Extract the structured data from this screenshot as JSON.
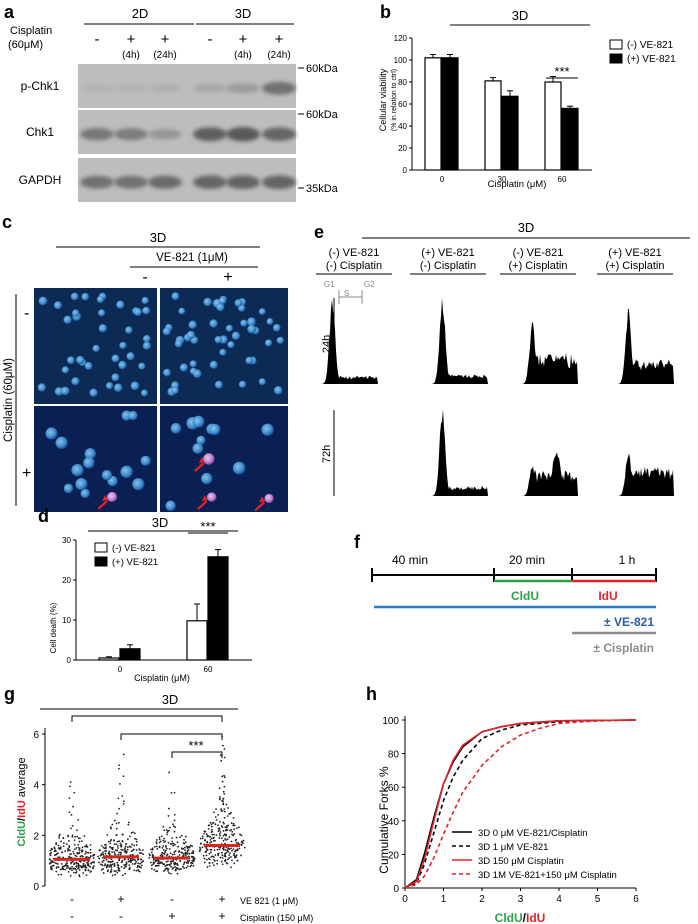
{
  "panels": {
    "a": {
      "letter": "a",
      "row_label_1": "Cisplatin",
      "row_label_2": "(60μM)",
      "group_2d": "2D",
      "group_3d": "3D",
      "lanes": [
        {
          "sign": "-",
          "time": ""
        },
        {
          "sign": "+",
          "time": "(4h)"
        },
        {
          "sign": "+",
          "time": "(24h)"
        },
        {
          "sign": "-",
          "time": ""
        },
        {
          "sign": "+",
          "time": "(4h)"
        },
        {
          "sign": "+",
          "time": "(24h)"
        }
      ],
      "blots": [
        {
          "label": "p-Chk1",
          "marker": "60kDa"
        },
        {
          "label": "Chk1",
          "marker": "60kDa"
        },
        {
          "label": "GAPDH",
          "marker": "35kDa"
        }
      ]
    },
    "b": {
      "letter": "b",
      "title": "3D",
      "ylabel_1": "Cellular viability",
      "ylabel_2": "(% in relation to ctrl)",
      "xlabel": "Cisplatin (μM)",
      "significance": "***",
      "legend": [
        "(-) VE-821",
        "(+) VE-821"
      ]
    },
    "c": {
      "letter": "c",
      "title": "3D",
      "treatment": "VE-821 (1μM)",
      "col_minus": "-",
      "col_plus": "+",
      "row_label": "Cisplatin (60μM)",
      "row_minus": "-",
      "row_plus": "+"
    },
    "d": {
      "letter": "d",
      "title": "3D",
      "ylabel": "Cell death (%)",
      "xlabel": "Cisplatin (μM)",
      "significance": "***",
      "legend": [
        "(-) VE-821",
        "(+) VE-821"
      ]
    },
    "e": {
      "letter": "e",
      "title": "3D",
      "columns": [
        {
          "line1": "(-) VE-821",
          "line2": "(-) Cisplatin"
        },
        {
          "line1": "(+) VE-821",
          "line2": "(-) Cisplatin"
        },
        {
          "line1": "(-) VE-821",
          "line2": "(+) Cisplatin"
        },
        {
          "line1": "(+) VE-821",
          "line2": "(+) Cisplatin"
        }
      ],
      "phase_g1": "G1",
      "phase_s": "S",
      "phase_g2": "G2",
      "rows": [
        "24h",
        "72h"
      ]
    },
    "f": {
      "letter": "f",
      "seg1": "40 min",
      "seg2": "20 min",
      "seg3": "1 h",
      "cldu": "CldU",
      "idu": "IdU",
      "ve": "± VE-821",
      "cis": "± Cisplatin",
      "colors": {
        "cldu": "#2ca24a",
        "idu": "#e4222b",
        "ve": "#2f78c2",
        "ve_text": "#2a5da8",
        "cis": "#8c8c8c"
      }
    },
    "g": {
      "letter": "g",
      "title": "3D",
      "ylabel_c": "CldU",
      "ylabel_slash": "/",
      "ylabel_i": "IdU",
      "ylabel_rest": " average",
      "significance": "***",
      "row1_label": "VE 821 (1 μM)",
      "row2_label": "Cisplatin (150 μM)",
      "row1_signs": [
        "-",
        "+",
        "-",
        "+"
      ],
      "row2_signs": [
        "-",
        "-",
        "+",
        "+"
      ]
    },
    "h": {
      "letter": "h",
      "ylabel": "Cumulative Forks %",
      "xlabel_c": "CldU",
      "xlabel_slash": "/",
      "xlabel_i": "IdU"
    }
  },
  "chart_data": [
    {
      "id": "b",
      "type": "bar",
      "title": "3D",
      "xlabel": "Cisplatin (μM)",
      "ylabel": "Cellular viability (% in relation to ctrl)",
      "categories": [
        "0",
        "30",
        "60"
      ],
      "ylim": [
        0,
        120
      ],
      "yticks": [
        0,
        20,
        40,
        60,
        80,
        100,
        120
      ],
      "series": [
        {
          "name": "(-) VE-821",
          "color": "#ffffff",
          "values": [
            102,
            81,
            80
          ],
          "errors": [
            3,
            3,
            5
          ]
        },
        {
          "name": "(+) VE-821",
          "color": "#000000",
          "values": [
            102,
            67,
            56
          ],
          "errors": [
            3,
            5,
            2
          ]
        }
      ]
    },
    {
      "id": "d",
      "type": "bar",
      "title": "3D",
      "xlabel": "Cisplatin (μM)",
      "ylabel": "Cell death (%)",
      "categories": [
        "0",
        "60"
      ],
      "ylim": [
        0,
        30
      ],
      "yticks": [
        0,
        10,
        20,
        30
      ],
      "series": [
        {
          "name": "(-) VE-821",
          "color": "#ffffff",
          "values": [
            0.5,
            9.8
          ],
          "errors": [
            0.3,
            4.2
          ]
        },
        {
          "name": "(+) VE-821",
          "color": "#000000",
          "values": [
            2.8,
            25.8
          ],
          "errors": [
            1.0,
            1.8
          ]
        }
      ]
    },
    {
      "id": "g",
      "type": "scatter",
      "title": "3D",
      "ylabel": "CldU/IdU average",
      "ylim": [
        0,
        6
      ],
      "yticks": [
        0,
        2,
        4,
        6
      ],
      "groups": [
        {
          "ve821": "-",
          "cisplatin": "-",
          "mean": 1.05
        },
        {
          "ve821": "+",
          "cisplatin": "-",
          "mean": 1.15
        },
        {
          "ve821": "-",
          "cisplatin": "+",
          "mean": 1.1
        },
        {
          "ve821": "+",
          "cisplatin": "+",
          "mean": 1.6
        }
      ]
    },
    {
      "id": "h",
      "type": "line",
      "xlabel": "CldU/IdU",
      "ylabel": "Cumulative Forks %",
      "xlim": [
        0,
        6
      ],
      "ylim": [
        0,
        100
      ],
      "xticks": [
        0,
        1,
        2,
        3,
        4,
        5,
        6
      ],
      "yticks": [
        0,
        20,
        40,
        60,
        80,
        100
      ],
      "series": [
        {
          "name": "3D 0 μM VE-821/Cisplatin",
          "color": "#000000",
          "dash": "solid",
          "x": [
            0,
            0.3,
            0.5,
            0.75,
            1.0,
            1.25,
            1.5,
            2.0,
            2.5,
            3.0,
            4.0,
            6.0
          ],
          "y": [
            0,
            5,
            20,
            42,
            62,
            75,
            84,
            93,
            96,
            98,
            99.5,
            100
          ]
        },
        {
          "name": "3D 1 μM VE-821",
          "color": "#000000",
          "dash": "dashed",
          "x": [
            0,
            0.3,
            0.5,
            0.75,
            1.0,
            1.25,
            1.5,
            2.0,
            2.5,
            3.0,
            4.0,
            6.0
          ],
          "y": [
            0,
            3,
            14,
            33,
            52,
            66,
            76,
            89,
            94,
            97,
            99,
            100
          ]
        },
        {
          "name": "3D 150 μM Cisplatin",
          "color": "#e4222b",
          "dash": "solid",
          "x": [
            0,
            0.3,
            0.5,
            0.75,
            1.0,
            1.25,
            1.5,
            2.0,
            2.5,
            3.0,
            4.0,
            6.0
          ],
          "y": [
            0,
            4,
            17,
            40,
            62,
            76,
            85,
            93,
            96,
            98,
            99.5,
            100
          ]
        },
        {
          "name": "3D 1M VE-821+150 μM Cisplatin",
          "color": "#e4222b",
          "dash": "dashed",
          "x": [
            0,
            0.3,
            0.5,
            0.75,
            1.0,
            1.25,
            1.5,
            2.0,
            2.5,
            3.0,
            3.5,
            4.0,
            5.0,
            6.0
          ],
          "y": [
            0,
            2,
            7,
            18,
            32,
            45,
            57,
            73,
            84,
            91,
            95,
            98,
            99.5,
            100
          ]
        }
      ]
    }
  ]
}
